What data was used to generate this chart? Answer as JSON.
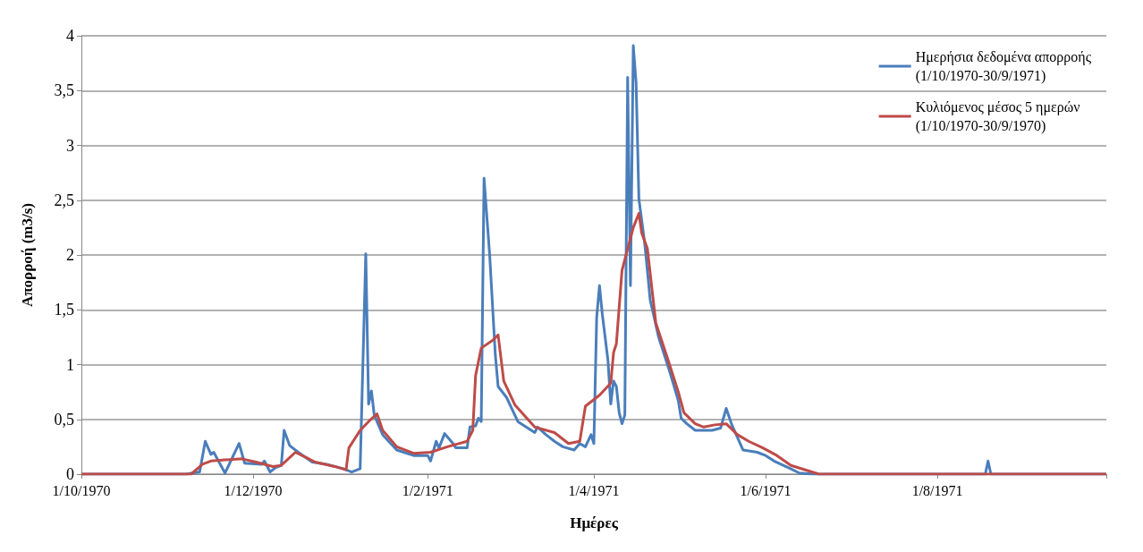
{
  "chart_data": {
    "type": "line",
    "xlabel": "Ημέρες",
    "ylabel": "Απορροή (m3/s)",
    "xlim": [
      "1970-10-01",
      "1971-09-30"
    ],
    "xticks": [
      {
        "value": "1970-10-01",
        "label": "1/10/1970"
      },
      {
        "value": "1970-12-01",
        "label": "1/12/1970"
      },
      {
        "value": "1971-02-01",
        "label": "1/2/1971"
      },
      {
        "value": "1971-04-01",
        "label": "1/4/1971"
      },
      {
        "value": "1971-06-01",
        "label": "1/6/1971"
      },
      {
        "value": "1971-08-01",
        "label": "1/8/1971"
      },
      {
        "value": "1971-09-30",
        "label": null
      }
    ],
    "ylim": [
      0,
      4
    ],
    "yticks": [
      0,
      {
        "value": 0.5,
        "label": "0,5"
      },
      1,
      {
        "value": 1.5,
        "label": "1,5"
      },
      2,
      {
        "value": 2.5,
        "label": "2,5"
      },
      3,
      {
        "value": 3.5,
        "label": "3,5"
      },
      4
    ],
    "grid": "y",
    "legend": "top right",
    "marker": "none",
    "line_style": "solid",
    "series": [
      {
        "name": "Ημερήσια δεδομένα απορροής\n(1/10/1970-30/9/1971)",
        "color": "#4a7ebb",
        "x": [
          "1970-10-01",
          "1970-11-07",
          "1970-11-12",
          "1970-11-14",
          "1970-11-16",
          "1970-11-17",
          "1970-11-21",
          "1970-11-26",
          "1970-11-28",
          "1970-12-04",
          "1970-12-05",
          "1970-12-07",
          "1970-12-09",
          "1970-12-11",
          "1970-12-12",
          "1970-12-14",
          "1970-12-17",
          "1970-12-22",
          "1970-12-27",
          "1971-01-02",
          "1971-01-05",
          "1971-01-08",
          "1971-01-10",
          "1971-01-11",
          "1971-01-12",
          "1971-01-13",
          "1971-01-16",
          "1971-01-21",
          "1971-01-27",
          "1971-02-01",
          "1971-02-02",
          "1971-02-04",
          "1971-02-05",
          "1971-02-07",
          "1971-02-10",
          "1971-02-11",
          "1971-02-15",
          "1971-02-16",
          "1971-02-18",
          "1971-02-19",
          "1971-02-20",
          "1971-02-21",
          "1971-02-23",
          "1971-02-25",
          "1971-02-26",
          "1971-03-01",
          "1971-03-05",
          "1971-03-11",
          "1971-03-12",
          "1971-03-15",
          "1971-03-18",
          "1971-03-21",
          "1971-03-25",
          "1971-03-27",
          "1971-03-29",
          "1971-03-31",
          "1971-04-01",
          "1971-04-02",
          "1971-04-03",
          "1971-04-04",
          "1971-04-06",
          "1971-04-07",
          "1971-04-08",
          "1971-04-09",
          "1971-04-10",
          "1971-04-11",
          "1971-04-12",
          "1971-04-13",
          "1971-04-14",
          "1971-04-15",
          "1971-04-16",
          "1971-04-17",
          "1971-04-19",
          "1971-04-20",
          "1971-04-21",
          "1971-04-24",
          "1971-04-28",
          "1971-05-01",
          "1971-05-02",
          "1971-05-04",
          "1971-05-07",
          "1971-05-13",
          "1971-05-16",
          "1971-05-18",
          "1971-05-20",
          "1971-05-24",
          "1971-05-29",
          "1971-06-01",
          "1971-06-04",
          "1971-06-09",
          "1971-06-13",
          "1971-06-18",
          "1971-08-18",
          "1971-08-19",
          "1971-08-20",
          "1971-09-30"
        ],
        "values": [
          0,
          0,
          0.02,
          0.3,
          0.18,
          0.2,
          0.01,
          0.28,
          0.1,
          0.09,
          0.12,
          0.02,
          0.06,
          0.08,
          0.4,
          0.26,
          0.2,
          0.11,
          0.09,
          0.05,
          0.02,
          0.05,
          2.01,
          0.64,
          0.76,
          0.54,
          0.36,
          0.22,
          0.17,
          0.17,
          0.12,
          0.3,
          0.24,
          0.37,
          0.28,
          0.24,
          0.24,
          0.43,
          0.44,
          0.51,
          0.48,
          2.7,
          2,
          1.09,
          0.8,
          0.7,
          0.48,
          0.38,
          0.43,
          0.36,
          0.3,
          0.25,
          0.22,
          0.28,
          0.25,
          0.36,
          0.28,
          1.43,
          1.72,
          1.46,
          1.04,
          0.64,
          0.85,
          0.8,
          0.56,
          0.46,
          0.54,
          3.62,
          1.72,
          3.91,
          3.57,
          2.51,
          2.12,
          1.86,
          1.59,
          1.25,
          0.93,
          0.67,
          0.51,
          0.46,
          0.4,
          0.4,
          0.42,
          0.6,
          0.45,
          0.22,
          0.2,
          0.17,
          0.12,
          0.06,
          0.01,
          0,
          0,
          0.12,
          0,
          0
        ]
      },
      {
        "name": "Κυλιόμενος μέσος 5 ημερών\n(1/10/1970-30/9/1970)",
        "color": "#be4b48",
        "x": [
          "1970-10-01",
          "1970-11-09",
          "1970-11-13",
          "1970-11-16",
          "1970-11-21",
          "1970-11-27",
          "1970-12-02",
          "1970-12-08",
          "1970-12-11",
          "1970-12-16",
          "1970-12-20",
          "1970-12-23",
          "1970-12-30",
          "1971-01-03",
          "1971-01-04",
          "1971-01-08",
          "1971-01-11",
          "1971-01-14",
          "1971-01-16",
          "1971-01-21",
          "1971-01-27",
          "1971-02-02",
          "1971-02-08",
          "1971-02-15",
          "1971-02-17",
          "1971-02-18",
          "1971-02-20",
          "1971-02-24",
          "1971-02-26",
          "1971-02-28",
          "1971-03-04",
          "1971-03-11",
          "1971-03-18",
          "1971-03-23",
          "1971-03-27",
          "1971-03-29",
          "1971-04-03",
          "1971-04-07",
          "1971-04-08",
          "1971-04-09",
          "1971-04-11",
          "1971-04-15",
          "1971-04-17",
          "1971-04-18",
          "1971-04-20",
          "1971-04-23",
          "1971-04-27",
          "1971-05-01",
          "1971-05-03",
          "1971-05-07",
          "1971-05-10",
          "1971-05-14",
          "1971-05-18",
          "1971-05-22",
          "1971-05-26",
          "1971-05-31",
          "1971-06-05",
          "1971-06-10",
          "1971-06-20",
          "1971-09-30"
        ],
        "values": [
          0,
          0,
          0.09,
          0.12,
          0.13,
          0.14,
          0.11,
          0.07,
          0.08,
          0.2,
          0.15,
          0.11,
          0.07,
          0.04,
          0.24,
          0.4,
          0.48,
          0.55,
          0.4,
          0.25,
          0.19,
          0.2,
          0.25,
          0.3,
          0.4,
          0.9,
          1.15,
          1.22,
          1.27,
          0.85,
          0.63,
          0.43,
          0.38,
          0.28,
          0.3,
          0.62,
          0.72,
          0.83,
          1.11,
          1.19,
          1.86,
          2.25,
          2.38,
          2.2,
          2.06,
          1.38,
          1.07,
          0.75,
          0.56,
          0.46,
          0.43,
          0.45,
          0.46,
          0.36,
          0.3,
          0.24,
          0.17,
          0.08,
          0,
          0
        ]
      }
    ]
  }
}
